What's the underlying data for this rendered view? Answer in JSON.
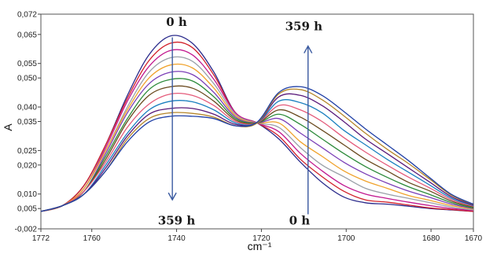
{
  "chart_data": {
    "type": "line",
    "xlabel": "cm⁻¹",
    "ylabel": "A",
    "xlim": [
      1772,
      1670
    ],
    "ylim": [
      -0.002,
      0.072
    ],
    "x_ticks": [
      {
        "value": 1772,
        "label": "1772"
      },
      {
        "value": 1760,
        "label": "1760"
      },
      {
        "value": 1740,
        "label": "1740"
      },
      {
        "value": 1720,
        "label": "1720"
      },
      {
        "value": 1700,
        "label": "1700"
      },
      {
        "value": 1680,
        "label": "1680"
      },
      {
        "value": 1670,
        "label": "1670"
      }
    ],
    "y_ticks": [
      {
        "value": -0.002,
        "label": "-0,002"
      },
      {
        "value": 0.005,
        "label": "0,005"
      },
      {
        "value": 0.01,
        "label": "0,010"
      },
      {
        "value": 0.02,
        "label": "0,020"
      },
      {
        "value": 0.025,
        "label": "0,025"
      },
      {
        "value": 0.035,
        "label": "0,035"
      },
      {
        "value": 0.04,
        "label": "0,040"
      },
      {
        "value": 0.05,
        "label": "0,050"
      },
      {
        "value": 0.055,
        "label": "0,055"
      },
      {
        "value": 0.065,
        "label": "0,065"
      },
      {
        "value": 0.072,
        "label": "0,072"
      }
    ],
    "grid": false,
    "legend": "none",
    "annotations": [
      {
        "text": "0 h",
        "x": 1740,
        "y": 0.068
      },
      {
        "text": "359 h",
        "x": 1740,
        "y": -0.0005
      },
      {
        "text": "359 h",
        "x": 1710,
        "y": 0.0665
      },
      {
        "text": "0 h",
        "x": 1711,
        "y": -0.0005
      }
    ],
    "arrows": [
      {
        "direction": "down",
        "x": 1741,
        "y_from": 0.064,
        "y_to": 0.008
      },
      {
        "direction": "up",
        "x": 1709,
        "y_from": 0.003,
        "y_to": 0.061
      }
    ],
    "series": [
      {
        "values": [
          0.004,
          0.006,
          0.013,
          0.027,
          0.044,
          0.058,
          0.0645,
          0.062,
          0.052,
          0.038,
          0.0345,
          0.029,
          0.021,
          0.014,
          0.009,
          0.007,
          0.0065,
          0.0058,
          0.005,
          0.0045,
          0.004
        ]
      },
      {
        "values": [
          0.004,
          0.006,
          0.013,
          0.027,
          0.043,
          0.056,
          0.062,
          0.0605,
          0.051,
          0.038,
          0.0345,
          0.03,
          0.022,
          0.016,
          0.011,
          0.008,
          0.0072,
          0.0062,
          0.0052,
          0.0046,
          0.004
        ]
      },
      {
        "values": [
          0.004,
          0.006,
          0.012,
          0.026,
          0.042,
          0.054,
          0.0595,
          0.058,
          0.0495,
          0.038,
          0.0345,
          0.0315,
          0.024,
          0.018,
          0.013,
          0.01,
          0.0085,
          0.0072,
          0.006,
          0.005,
          0.0043
        ]
      },
      {
        "values": [
          0.004,
          0.006,
          0.012,
          0.025,
          0.04,
          0.052,
          0.057,
          0.0558,
          0.048,
          0.0375,
          0.0345,
          0.033,
          0.026,
          0.02,
          0.016,
          0.012,
          0.01,
          0.0085,
          0.007,
          0.0055,
          0.0045
        ]
      },
      {
        "values": [
          0.004,
          0.006,
          0.012,
          0.025,
          0.039,
          0.05,
          0.0545,
          0.0535,
          0.0465,
          0.037,
          0.0345,
          0.0345,
          0.028,
          0.023,
          0.018,
          0.0145,
          0.012,
          0.0095,
          0.0078,
          0.006,
          0.0048
        ]
      },
      {
        "values": [
          0.004,
          0.006,
          0.011,
          0.024,
          0.038,
          0.048,
          0.052,
          0.0512,
          0.045,
          0.0365,
          0.0345,
          0.036,
          0.031,
          0.026,
          0.021,
          0.017,
          0.0138,
          0.011,
          0.0088,
          0.0065,
          0.005
        ]
      },
      {
        "values": [
          0.004,
          0.006,
          0.011,
          0.023,
          0.036,
          0.046,
          0.0495,
          0.049,
          0.0435,
          0.036,
          0.0345,
          0.0375,
          0.034,
          0.029,
          0.024,
          0.0195,
          0.0158,
          0.0125,
          0.0098,
          0.007,
          0.0052
        ]
      },
      {
        "values": [
          0.004,
          0.006,
          0.011,
          0.022,
          0.035,
          0.044,
          0.047,
          0.0465,
          0.042,
          0.0355,
          0.0345,
          0.039,
          0.0365,
          0.032,
          0.027,
          0.022,
          0.018,
          0.014,
          0.011,
          0.0075,
          0.0055
        ]
      },
      {
        "values": [
          0.004,
          0.006,
          0.011,
          0.021,
          0.033,
          0.041,
          0.0445,
          0.044,
          0.0405,
          0.035,
          0.0345,
          0.0405,
          0.039,
          0.035,
          0.0295,
          0.0245,
          0.02,
          0.0158,
          0.012,
          0.008,
          0.0058
        ]
      },
      {
        "values": [
          0.004,
          0.006,
          0.01,
          0.02,
          0.031,
          0.039,
          0.042,
          0.0418,
          0.039,
          0.0345,
          0.0345,
          0.042,
          0.0415,
          0.038,
          0.032,
          0.027,
          0.022,
          0.0175,
          0.013,
          0.0085,
          0.006
        ]
      },
      {
        "values": [
          0.004,
          0.006,
          0.01,
          0.019,
          0.03,
          0.0375,
          0.0395,
          0.0395,
          0.0375,
          0.034,
          0.0345,
          0.0435,
          0.044,
          0.0405,
          0.035,
          0.029,
          0.024,
          0.019,
          0.014,
          0.009,
          0.0062
        ]
      },
      {
        "values": [
          0.004,
          0.006,
          0.01,
          0.018,
          0.029,
          0.036,
          0.038,
          0.0378,
          0.0365,
          0.0335,
          0.0345,
          0.0445,
          0.046,
          0.0425,
          0.037,
          0.031,
          0.0255,
          0.0205,
          0.015,
          0.0095,
          0.0064
        ]
      },
      {
        "values": [
          0.004,
          0.006,
          0.01,
          0.018,
          0.028,
          0.0348,
          0.0368,
          0.0368,
          0.036,
          0.0335,
          0.0348,
          0.045,
          0.047,
          0.044,
          0.0385,
          0.0325,
          0.027,
          0.0215,
          0.0155,
          0.0098,
          0.0065
        ]
      }
    ]
  },
  "colors": [
    "#2b2b8c",
    "#d1202a",
    "#c1188f",
    "#9aa0a8",
    "#f0a22b",
    "#7b3fb7",
    "#2c8a3a",
    "#6a4a1f",
    "#e45a7a",
    "#1a7fbf",
    "#5a1a7a",
    "#b5862a",
    "#1f3fa6"
  ],
  "arrow_color": "#3a5aa0"
}
